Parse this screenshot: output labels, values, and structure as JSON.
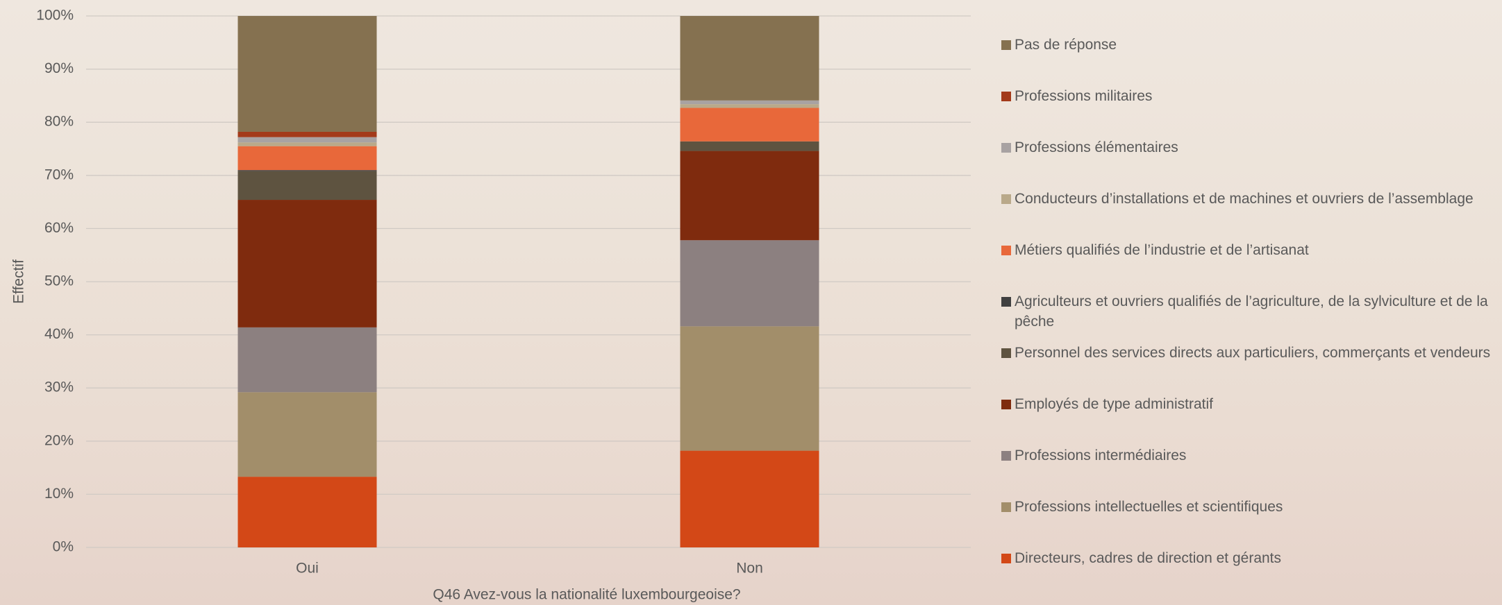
{
  "chart_data": {
    "type": "stacked_bar",
    "x_label": "Q46 Avez-vous la nationalité luxembourgeoise?",
    "y_label": "Effectif",
    "categories": [
      "Oui",
      "Non"
    ],
    "ylim": [
      0,
      100
    ],
    "yticks": [
      {
        "value": 0,
        "label": "0%"
      },
      {
        "value": 10,
        "label": "10%"
      },
      {
        "value": 20,
        "label": "20%"
      },
      {
        "value": 30,
        "label": "30%"
      },
      {
        "value": 40,
        "label": "40%"
      },
      {
        "value": 50,
        "label": "50%"
      },
      {
        "value": 60,
        "label": "60%"
      },
      {
        "value": 70,
        "label": "70%"
      },
      {
        "value": 80,
        "label": "80%"
      },
      {
        "value": 90,
        "label": "90%"
      },
      {
        "value": 100,
        "label": "100%"
      }
    ],
    "grid": true,
    "legend": "right",
    "series": [
      {
        "name": "Directeurs, cadres de direction et gérants",
        "color": "#d34817",
        "values": [
          13.3,
          18.2
        ]
      },
      {
        "name": "Professions intellectuelles et scientifiques",
        "color": "#a28e6a",
        "values": [
          15.9,
          23.4
        ]
      },
      {
        "name": "Professions intermédiaires",
        "color": "#8c8080",
        "values": [
          12.2,
          16.2
        ]
      },
      {
        "name": "Employés de type administratif",
        "color": "#7f2b0e",
        "values": [
          24.0,
          16.8
        ]
      },
      {
        "name": "Personnel des services directs aux particuliers, commerçants et vendeurs",
        "color": "#5e5340",
        "values": [
          5.4,
          1.8
        ]
      },
      {
        "name": "Agriculteurs et ouvriers qualifiés de l’agriculture, de la sylviculture et de la pêche",
        "color": "#404040",
        "values": [
          0.2,
          0
        ]
      },
      {
        "name": "Métiers qualifiés de l’industrie et de l’artisanat",
        "color": "#e8683a",
        "values": [
          4.5,
          6.3
        ]
      },
      {
        "name": "Conducteurs d’installations et de machines et ouvriers de l’assemblage",
        "color": "#b9a98a",
        "values": [
          0.7,
          0.7
        ]
      },
      {
        "name": "Professions élémentaires",
        "color": "#a8a2a2",
        "values": [
          1.0,
          0.7
        ]
      },
      {
        "name": "Professions militaires",
        "color": "#a33a1a",
        "values": [
          1.0,
          0
        ]
      },
      {
        "name": "Pas de réponse",
        "color": "#857150",
        "values": [
          21.8,
          15.9
        ]
      }
    ]
  }
}
